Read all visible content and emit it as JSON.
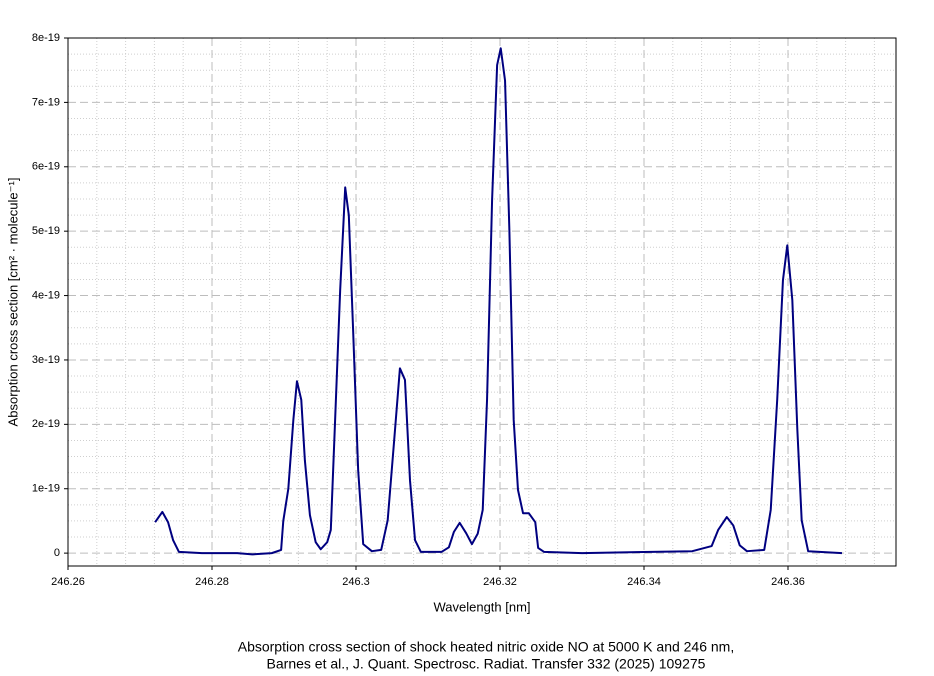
{
  "chart_data": {
    "type": "line",
    "xlabel": "Wavelength [nm]",
    "ylabel": "Absorption cross section [cm² · molecule⁻¹]",
    "caption": [
      "Absorption cross section of shock heated nitric oxide NO at 5000 K and 246 nm,",
      "Barnes et al., J. Quant. Spectrosc. Radiat. Transfer 332 (2025) 109275"
    ],
    "color": "#000080",
    "grid": true,
    "xlim": [
      246.26,
      246.375
    ],
    "ylim": [
      -2e-20,
      8e-19
    ],
    "xticks": [
      246.26,
      246.28,
      246.3,
      246.32,
      246.34,
      246.36
    ],
    "yticks": [
      0,
      1e-19,
      2e-19,
      3e-19,
      4e-19,
      5e-19,
      6e-19,
      7e-19,
      8e-19
    ],
    "x": [
      246.2721,
      246.2731,
      246.2739,
      246.2746,
      246.2754,
      246.2786,
      246.2835,
      246.2856,
      246.2883,
      246.2896,
      246.2899,
      246.2906,
      246.2913,
      246.2918,
      246.2924,
      246.2929,
      246.2936,
      246.2944,
      246.2951,
      246.296,
      246.2965,
      246.2971,
      246.2978,
      246.2985,
      246.299,
      246.2996,
      246.3003,
      246.301,
      246.3022,
      246.3035,
      246.3044,
      246.3053,
      246.3061,
      246.3068,
      246.3075,
      246.3082,
      246.309,
      246.3119,
      246.3129,
      246.3136,
      246.3144,
      246.3153,
      246.3161,
      246.3169,
      246.3176,
      246.3182,
      246.3189,
      246.3196,
      246.3201,
      246.3207,
      246.3213,
      246.3219,
      246.3225,
      246.3232,
      246.324,
      246.3249,
      246.3253,
      246.3261,
      246.3314,
      246.3411,
      246.3467,
      246.3494,
      246.3503,
      246.3515,
      246.3524,
      246.3533,
      246.3543,
      246.3567,
      246.3576,
      246.3585,
      246.3593,
      246.3599,
      246.3606,
      246.3613,
      246.3619,
      246.3628,
      246.3675
    ],
    "values": [
      4.8e-20,
      6.4e-20,
      4.8e-20,
      2e-20,
      2e-21,
      0,
      0,
      -2e-21,
      0,
      5e-21,
      5e-20,
      1e-19,
      2.07e-19,
      2.67e-19,
      2.38e-19,
      1.44e-19,
      5.9e-20,
      1.7e-20,
      6e-21,
      1.7e-20,
      3.6e-20,
      2.07e-19,
      4.08e-19,
      5.68e-19,
      5.25e-19,
      3.46e-19,
      1.29e-19,
      1.4e-20,
      3e-21,
      5e-21,
      5.1e-20,
      1.75e-19,
      2.87e-19,
      2.69e-19,
      1.13e-19,
      2e-20,
      2e-21,
      2e-21,
      9e-21,
      3.3e-20,
      4.7e-20,
      3.1e-20,
      1.4e-20,
      3e-20,
      6.7e-20,
      2.38e-19,
      5.48e-19,
      7.58e-19,
      7.84e-19,
      7.34e-19,
      5.02e-19,
      2.07e-19,
      9.8e-20,
      6.2e-20,
      6.2e-20,
      4.8e-20,
      8e-21,
      2e-21,
      0,
      2e-21,
      3e-21,
      1.1e-20,
      3.6e-20,
      5.6e-20,
      4.3e-20,
      1.2e-20,
      3e-21,
      5e-21,
      6.7e-20,
      2.38e-19,
      4.24e-19,
      4.78e-19,
      3.93e-19,
      1.91e-19,
      5.1e-20,
      3e-21,
      0
    ]
  }
}
